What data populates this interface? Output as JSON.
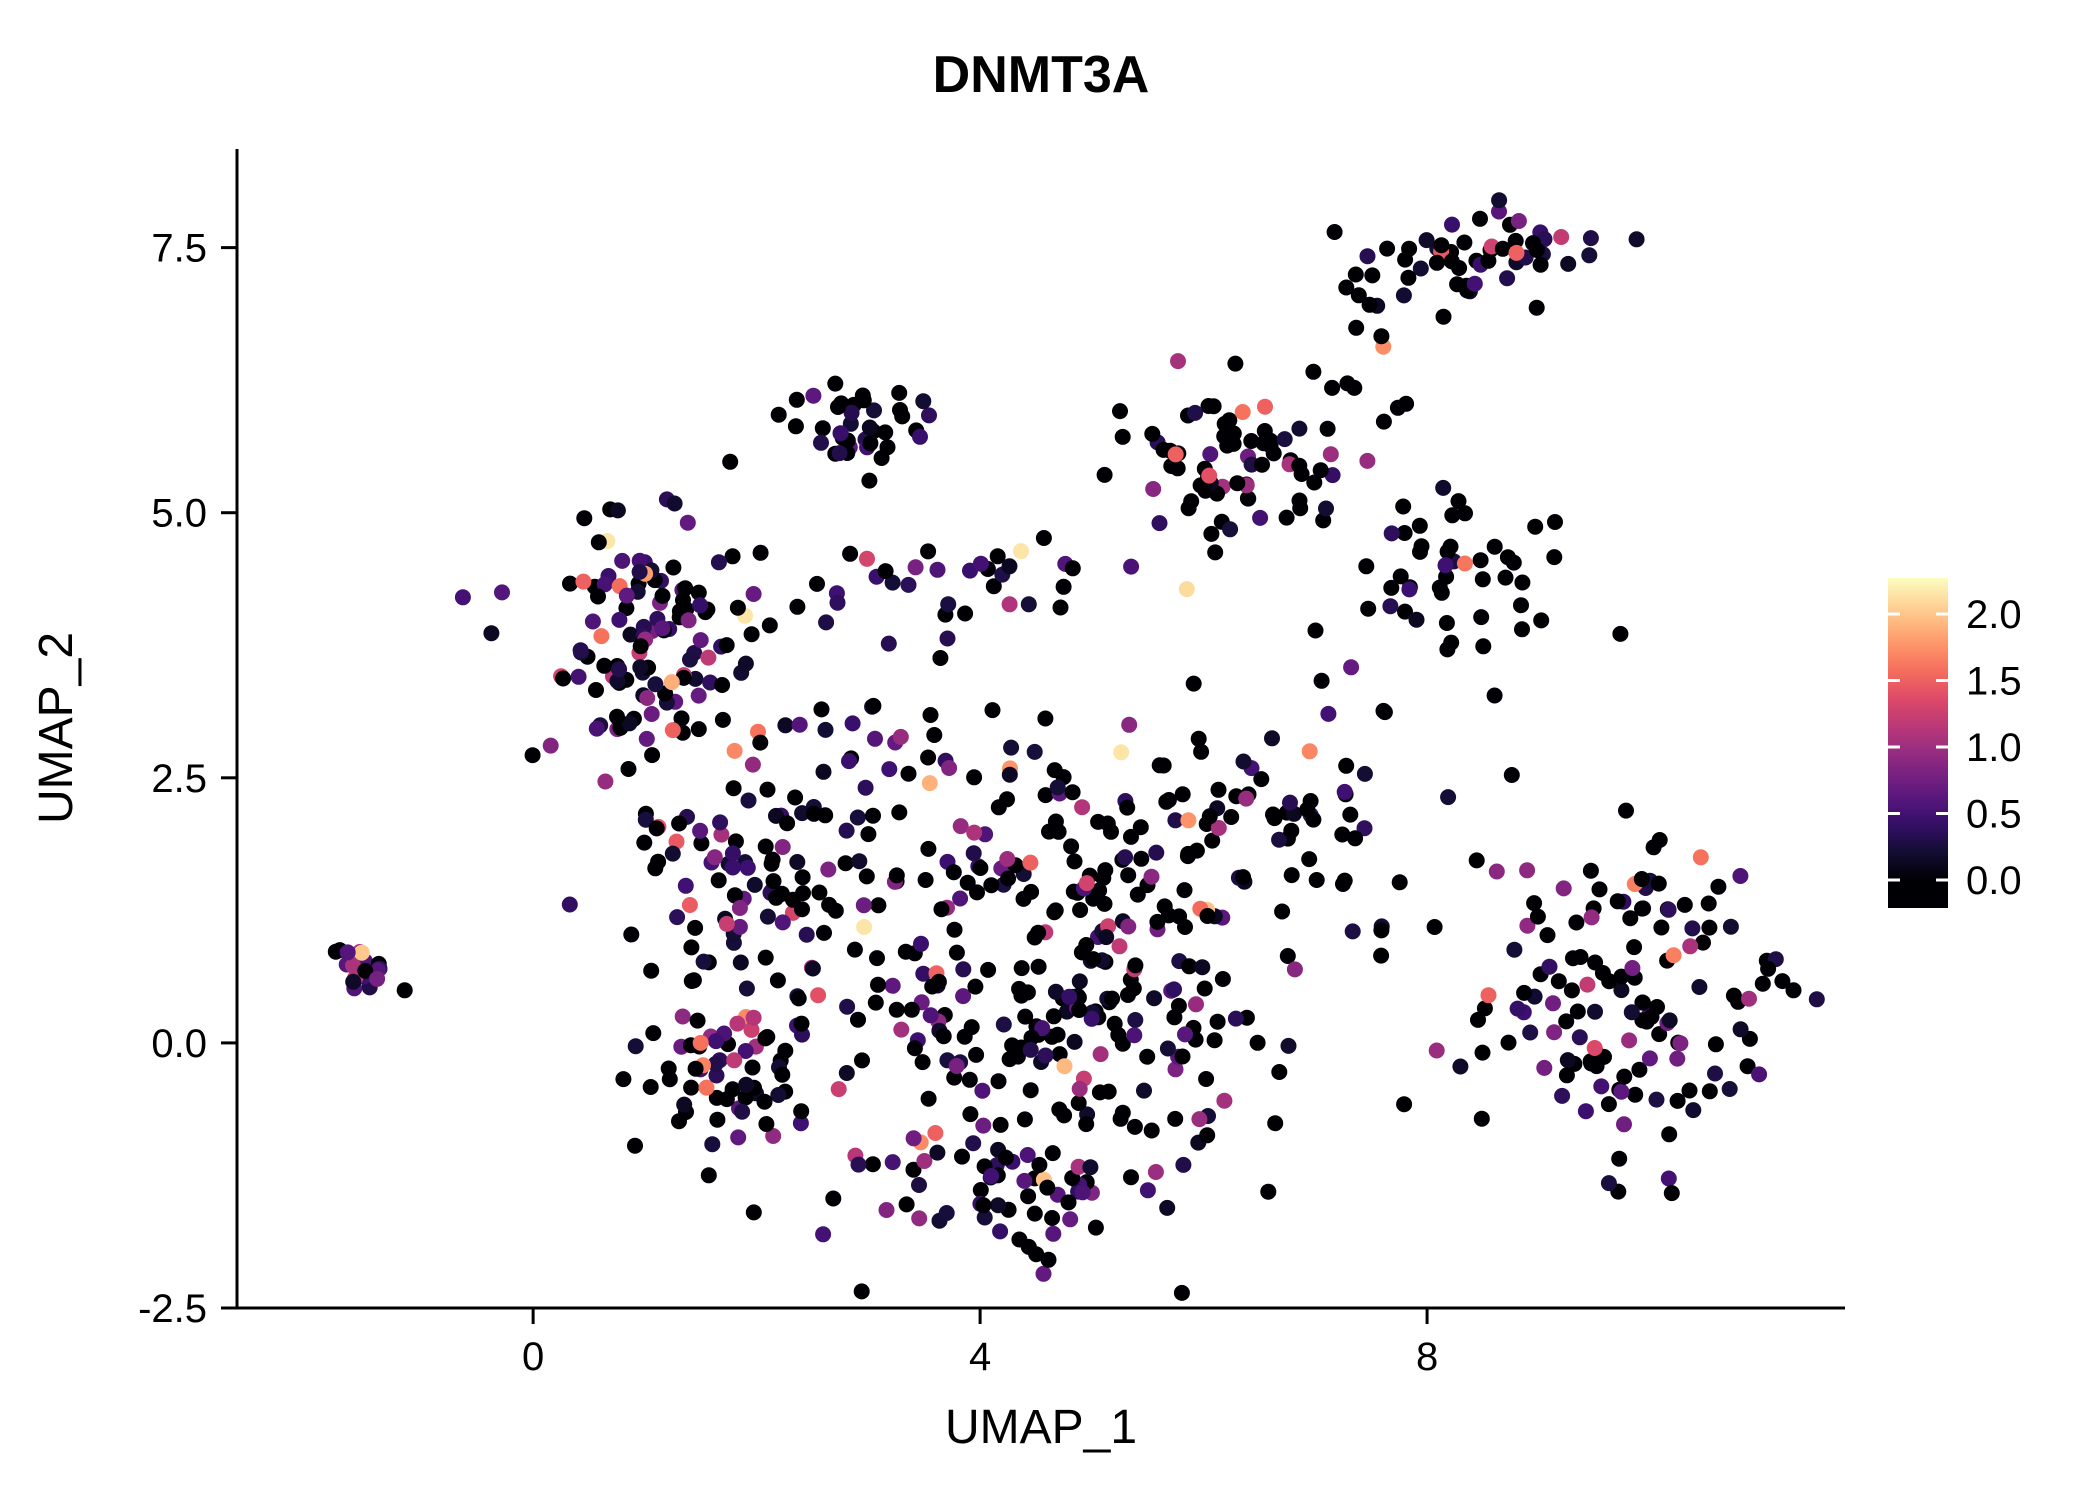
{
  "chart_data": {
    "type": "scatter",
    "title": "DNMT3A",
    "xlabel": "UMAP_1",
    "ylabel": "UMAP_2",
    "xlim": [
      -2.65,
      11.74
    ],
    "ylim": [
      -2.5,
      8.43
    ],
    "xticks": {
      "values": [
        0,
        4,
        8
      ],
      "labels": [
        "0",
        "4",
        "8"
      ]
    },
    "yticks": {
      "values": [
        -2.5,
        0.0,
        2.5,
        5.0,
        7.5
      ],
      "labels": [
        "-2.5",
        "0.0",
        "2.5",
        "5.0",
        "7.5"
      ]
    },
    "colorbar": {
      "tick_values": [
        2.0,
        1.5,
        1.0,
        0.5,
        0.0
      ],
      "tick_labels": [
        "2.0",
        "1.5",
        "1.0",
        "0.5",
        "0.0"
      ],
      "domain_max": 2.27
    },
    "colormap_magma": [
      "#000004",
      "#140e36",
      "#3b0f70",
      "#641a80",
      "#8c2981",
      "#b73779",
      "#de4968",
      "#f7705c",
      "#fe9f6d",
      "#fecf92",
      "#fcfdbf"
    ],
    "point_radius": 8,
    "seed": 20240613,
    "clusters": [
      {
        "cx": -1.55,
        "cy": 0.72,
        "sx": 0.16,
        "sy": 0.11,
        "n": 20,
        "zero": 0.3,
        "scale": 0.6
      },
      {
        "cx": 1.05,
        "cy": 3.8,
        "sx": 0.5,
        "sy": 0.55,
        "n": 125,
        "zero": 0.45,
        "scale": 0.5
      },
      {
        "cx": 1.8,
        "cy": 1.5,
        "sx": 0.55,
        "sy": 0.5,
        "n": 75,
        "zero": 0.5,
        "scale": 0.5
      },
      {
        "cx": 1.75,
        "cy": -0.15,
        "sx": 0.4,
        "sy": 0.45,
        "n": 65,
        "zero": 0.45,
        "scale": 0.5
      },
      {
        "cx": 2.95,
        "cy": 5.75,
        "sx": 0.3,
        "sy": 0.27,
        "n": 38,
        "zero": 0.55,
        "scale": 0.45
      },
      {
        "cx": 3.7,
        "cy": 4.35,
        "sx": 0.85,
        "sy": 0.22,
        "n": 32,
        "zero": 0.5,
        "scale": 0.5
      },
      {
        "cx": 6.25,
        "cy": 5.5,
        "sx": 0.48,
        "sy": 0.45,
        "n": 72,
        "zero": 0.7,
        "scale": 0.55
      },
      {
        "cx": 8.45,
        "cy": 7.4,
        "sx": 0.55,
        "sy": 0.24,
        "n": 55,
        "zero": 0.55,
        "scale": 0.5
      },
      {
        "cx": 8.3,
        "cy": 4.4,
        "sx": 0.5,
        "sy": 0.38,
        "n": 48,
        "zero": 0.7,
        "scale": 0.5
      },
      {
        "cx": 4.7,
        "cy": 0.5,
        "sx": 1.15,
        "sy": 0.95,
        "n": 265,
        "zero": 0.55,
        "scale": 0.45
      },
      {
        "cx": 5.3,
        "cy": 2.1,
        "sx": 1.05,
        "sy": 0.5,
        "n": 70,
        "zero": 0.6,
        "scale": 0.5
      },
      {
        "cx": 4.2,
        "cy": -1.35,
        "sx": 0.95,
        "sy": 0.33,
        "n": 55,
        "zero": 0.6,
        "scale": 0.45
      },
      {
        "cx": 9.7,
        "cy": 0.5,
        "sx": 0.72,
        "sy": 0.8,
        "n": 140,
        "zero": 0.55,
        "scale": 0.5
      },
      {
        "cx": 7.0,
        "cy": 2.3,
        "sx": 0.5,
        "sy": 0.75,
        "n": 33,
        "zero": 0.7,
        "scale": 0.5
      },
      {
        "cx": 3.0,
        "cy": 2.85,
        "sx": 0.55,
        "sy": 0.45,
        "n": 28,
        "zero": 0.5,
        "scale": 0.5
      },
      {
        "cx": 7.35,
        "cy": 6.3,
        "sx": 0.35,
        "sy": 0.45,
        "n": 10,
        "zero": 0.8,
        "scale": 0.4
      }
    ],
    "highlight_points": [
      {
        "x": 5.85,
        "y": 4.28,
        "v": 2.1
      },
      {
        "x": 3.55,
        "y": 2.45,
        "v": 1.9
      },
      {
        "x": 6.35,
        "y": 5.95,
        "v": 1.6
      },
      {
        "x": 6.55,
        "y": 6.0,
        "v": 1.5
      },
      {
        "x": 5.75,
        "y": 5.55,
        "v": 1.5
      },
      {
        "x": 6.05,
        "y": 5.35,
        "v": 1.4
      },
      {
        "x": 8.8,
        "y": 7.45,
        "v": 1.5
      },
      {
        "x": 6.95,
        "y": 2.75,
        "v": 1.7
      },
      {
        "x": 0.45,
        "y": 4.35,
        "v": 1.5
      },
      {
        "x": 1.25,
        "y": 2.95,
        "v": 1.5
      },
      {
        "x": 1.5,
        "y": 0.0,
        "v": 1.6
      },
      {
        "x": 10.45,
        "y": 1.75,
        "v": 1.6
      },
      {
        "x": 8.55,
        "y": 0.45,
        "v": 1.5
      },
      {
        "x": 4.45,
        "y": 1.7,
        "v": 1.5
      },
      {
        "x": 2.55,
        "y": 0.45,
        "v": 1.4
      },
      {
        "x": 3.6,
        "y": -0.85,
        "v": 1.5
      },
      {
        "x": 9.2,
        "y": 7.6,
        "v": 1.2
      }
    ]
  }
}
